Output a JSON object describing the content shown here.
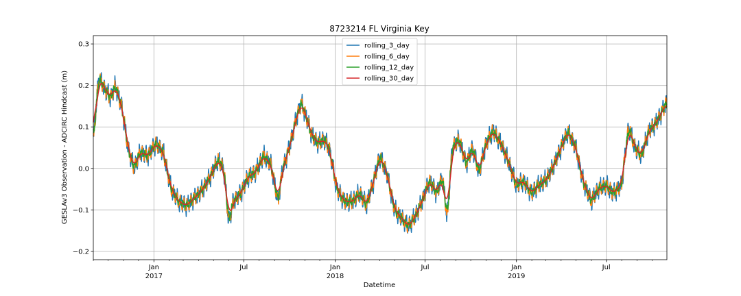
{
  "chart_data": {
    "type": "line",
    "title": "8723214 FL Virginia Key",
    "xlabel": "Datetime",
    "ylabel": "GESLAv3 Observation - ADCIRC Hindcast (m)",
    "xlim": [
      "2016-09-01",
      "2019-10-31"
    ],
    "ylim": [
      -0.22,
      0.32
    ],
    "grid": true,
    "legend_position": "top-center",
    "y_ticks": [
      "−0.2",
      "−0.1",
      "0.0",
      "0.1",
      "0.2",
      "0.3"
    ],
    "y_tick_values": [
      -0.2,
      -0.1,
      0.0,
      0.1,
      0.2,
      0.3
    ],
    "x_major_ticks": [
      {
        "date": "2017-01-01",
        "label": "Jan",
        "sub": "2017"
      },
      {
        "date": "2017-07-01",
        "label": "Jul",
        "sub": ""
      },
      {
        "date": "2018-01-01",
        "label": "Jan",
        "sub": "2018"
      },
      {
        "date": "2018-07-01",
        "label": "Jul",
        "sub": ""
      },
      {
        "date": "2019-01-01",
        "label": "Jan",
        "sub": "2019"
      },
      {
        "date": "2019-07-01",
        "label": "Jul",
        "sub": ""
      }
    ],
    "base_shape": [
      [
        "2016-09-01",
        0.06
      ],
      [
        "2016-09-12",
        0.22
      ],
      [
        "2016-09-25",
        0.19
      ],
      [
        "2016-10-06",
        0.17
      ],
      [
        "2016-10-16",
        0.2
      ],
      [
        "2016-10-30",
        0.14
      ],
      [
        "2016-11-10",
        0.05
      ],
      [
        "2016-11-22",
        0.0
      ],
      [
        "2016-12-05",
        0.04
      ],
      [
        "2016-12-20",
        0.03
      ],
      [
        "2017-01-05",
        0.06
      ],
      [
        "2017-01-20",
        0.04
      ],
      [
        "2017-02-05",
        -0.05
      ],
      [
        "2017-02-20",
        -0.08
      ],
      [
        "2017-03-08",
        -0.09
      ],
      [
        "2017-03-25",
        -0.07
      ],
      [
        "2017-04-10",
        -0.05
      ],
      [
        "2017-04-25",
        -0.02
      ],
      [
        "2017-05-10",
        0.02
      ],
      [
        "2017-05-22",
        0.0
      ],
      [
        "2017-06-01",
        -0.13
      ],
      [
        "2017-06-10",
        -0.08
      ],
      [
        "2017-06-25",
        -0.06
      ],
      [
        "2017-07-10",
        -0.02
      ],
      [
        "2017-07-25",
        -0.01
      ],
      [
        "2017-08-10",
        0.03
      ],
      [
        "2017-08-25",
        0.01
      ],
      [
        "2017-09-08",
        -0.08
      ],
      [
        "2017-09-18",
        0.0
      ],
      [
        "2017-10-01",
        0.05
      ],
      [
        "2017-10-15",
        0.12
      ],
      [
        "2017-10-25",
        0.16
      ],
      [
        "2017-11-05",
        0.12
      ],
      [
        "2017-11-15",
        0.08
      ],
      [
        "2017-11-28",
        0.06
      ],
      [
        "2017-12-10",
        0.07
      ],
      [
        "2017-12-20",
        0.05
      ],
      [
        "2018-01-05",
        -0.05
      ],
      [
        "2018-01-20",
        -0.08
      ],
      [
        "2018-02-05",
        -0.08
      ],
      [
        "2018-02-20",
        -0.06
      ],
      [
        "2018-03-05",
        -0.09
      ],
      [
        "2018-03-20",
        -0.03
      ],
      [
        "2018-04-01",
        0.03
      ],
      [
        "2018-04-15",
        -0.01
      ],
      [
        "2018-05-01",
        -0.1
      ],
      [
        "2018-05-15",
        -0.12
      ],
      [
        "2018-05-28",
        -0.14
      ],
      [
        "2018-06-10",
        -0.12
      ],
      [
        "2018-06-25",
        -0.08
      ],
      [
        "2018-07-10",
        -0.03
      ],
      [
        "2018-07-25",
        -0.06
      ],
      [
        "2018-08-05",
        -0.02
      ],
      [
        "2018-08-15",
        -0.12
      ],
      [
        "2018-08-25",
        0.05
      ],
      [
        "2018-09-08",
        0.07
      ],
      [
        "2018-09-22",
        0.01
      ],
      [
        "2018-10-05",
        0.05
      ],
      [
        "2018-10-18",
        -0.01
      ],
      [
        "2018-11-01",
        0.06
      ],
      [
        "2018-11-15",
        0.09
      ],
      [
        "2018-12-01",
        0.06
      ],
      [
        "2018-12-15",
        0.02
      ],
      [
        "2019-01-01",
        -0.04
      ],
      [
        "2019-01-15",
        -0.03
      ],
      [
        "2019-02-01",
        -0.06
      ],
      [
        "2019-02-15",
        -0.04
      ],
      [
        "2019-03-01",
        -0.03
      ],
      [
        "2019-03-15",
        0.0
      ],
      [
        "2019-04-01",
        0.05
      ],
      [
        "2019-04-15",
        0.09
      ],
      [
        "2019-05-01",
        0.05
      ],
      [
        "2019-05-15",
        -0.03
      ],
      [
        "2019-06-01",
        -0.08
      ],
      [
        "2019-06-15",
        -0.05
      ],
      [
        "2019-07-01",
        -0.04
      ],
      [
        "2019-07-15",
        -0.06
      ],
      [
        "2019-08-01",
        -0.04
      ],
      [
        "2019-08-15",
        0.1
      ],
      [
        "2019-08-28",
        0.05
      ],
      [
        "2019-09-10",
        0.03
      ],
      [
        "2019-09-25",
        0.09
      ],
      [
        "2019-10-10",
        0.11
      ],
      [
        "2019-10-31",
        0.16
      ]
    ],
    "series": [
      {
        "name": "rolling_3_day",
        "color": "#1f77b4",
        "window_days": 3,
        "noise_amp": 0.028
      },
      {
        "name": "rolling_6_day",
        "color": "#ff7f0e",
        "window_days": 6,
        "noise_amp": 0.02
      },
      {
        "name": "rolling_12_day",
        "color": "#2ca02c",
        "window_days": 12,
        "noise_amp": 0.012
      },
      {
        "name": "rolling_30_day",
        "color": "#d62728",
        "window_days": 30,
        "noise_amp": 0.0
      }
    ]
  }
}
